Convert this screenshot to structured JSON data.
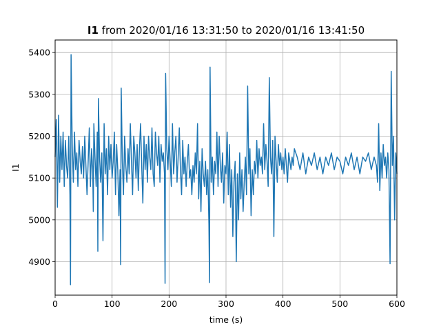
{
  "chart_data": {
    "type": "line",
    "title_bold": "I1",
    "title_rest": " from 2020/01/16 13:31:50 to 2020/01/16 13:41:50",
    "xlabel": "time (s)",
    "ylabel": "I1",
    "xlim": [
      0,
      600
    ],
    "ylim": [
      4820,
      5430
    ],
    "xticks": [
      0,
      100,
      200,
      300,
      400,
      500,
      600
    ],
    "yticks": [
      4900,
      5000,
      5100,
      5200,
      5300,
      5400
    ],
    "grid": true,
    "line_color": "#1f77b4",
    "series": [
      {
        "x": [
          0,
          2,
          4,
          6,
          8,
          10,
          12,
          14,
          16,
          18,
          20,
          22,
          24,
          26,
          27,
          28,
          30,
          32,
          34,
          36,
          38,
          40,
          42,
          44,
          46,
          48,
          50,
          52,
          54,
          56,
          58,
          60,
          62,
          64,
          66,
          67,
          68,
          70,
          72,
          74,
          75,
          76,
          78,
          80,
          82,
          84,
          86,
          88,
          90,
          92,
          94,
          96,
          98,
          100,
          102,
          104,
          106,
          108,
          110,
          112,
          114,
          115,
          116,
          118,
          120,
          122,
          124,
          126,
          128,
          130,
          132,
          134,
          136,
          138,
          140,
          142,
          144,
          146,
          148,
          150,
          152,
          154,
          156,
          158,
          160,
          162,
          164,
          166,
          168,
          170,
          172,
          174,
          176,
          178,
          180,
          182,
          184,
          186,
          188,
          190,
          192,
          193,
          194,
          196,
          198,
          200,
          202,
          204,
          206,
          208,
          210,
          212,
          214,
          216,
          218,
          220,
          222,
          224,
          226,
          228,
          230,
          232,
          234,
          236,
          238,
          240,
          242,
          244,
          246,
          248,
          250,
          252,
          254,
          256,
          258,
          260,
          262,
          264,
          266,
          268,
          270,
          271,
          272,
          274,
          276,
          278,
          280,
          282,
          284,
          286,
          288,
          290,
          292,
          294,
          296,
          298,
          300,
          302,
          304,
          306,
          308,
          310,
          312,
          314,
          316,
          318,
          320,
          322,
          324,
          326,
          328,
          330,
          332,
          334,
          336,
          338,
          340,
          342,
          344,
          346,
          348,
          350,
          352,
          354,
          356,
          358,
          360,
          362,
          364,
          366,
          368,
          370,
          372,
          374,
          376,
          378,
          380,
          382,
          384,
          386,
          388,
          390,
          392,
          394,
          396,
          398,
          400,
          402,
          404,
          406,
          408,
          410,
          412,
          414,
          416,
          418,
          420,
          425,
          430,
          435,
          440,
          445,
          450,
          455,
          460,
          465,
          470,
          475,
          480,
          485,
          490,
          495,
          500,
          505,
          510,
          515,
          520,
          525,
          530,
          535,
          540,
          545,
          550,
          555,
          560,
          564,
          566,
          568,
          570,
          572,
          574,
          576,
          578,
          580,
          582,
          584,
          586,
          588,
          590,
          592,
          594,
          596,
          598,
          600
        ],
        "y": [
          5150,
          5240,
          5030,
          5250,
          5090,
          5200,
          5120,
          5210,
          5080,
          5190,
          5130,
          5100,
          5200,
          5060,
          4845,
          5395,
          5180,
          5090,
          5210,
          5120,
          5160,
          5080,
          5190,
          5140,
          5110,
          5175,
          5100,
          5200,
          5130,
          5060,
          5140,
          5220,
          5080,
          5170,
          5120,
          5020,
          5230,
          5150,
          5080,
          5210,
          4925,
          5290,
          5150,
          5090,
          5160,
          4950,
          5230,
          5110,
          5170,
          5060,
          5200,
          5120,
          5180,
          5100,
          5140,
          5210,
          5060,
          5180,
          5120,
          5010,
          5120,
          4893,
          5315,
          5140,
          5060,
          5200,
          5130,
          5090,
          5170,
          5110,
          5230,
          5140,
          5060,
          5200,
          5160,
          5100,
          5180,
          5070,
          5170,
          5230,
          5130,
          5040,
          5200,
          5120,
          5180,
          5090,
          5200,
          5150,
          5120,
          5220,
          5110,
          5080,
          5210,
          5160,
          5130,
          5200,
          5090,
          5180,
          5140,
          5160,
          5110,
          4848,
          5350,
          5170,
          5120,
          5200,
          5140,
          5080,
          5230,
          5110,
          5160,
          5200,
          5090,
          5150,
          5220,
          5120,
          5060,
          5190,
          5110,
          5150,
          5080,
          5140,
          5180,
          5100,
          5120,
          5060,
          5130,
          5090,
          5160,
          5110,
          5230,
          5050,
          5140,
          5020,
          5170,
          5110,
          5080,
          5140,
          5060,
          5120,
          4990,
          4850,
          5365,
          5090,
          5150,
          5060,
          5140,
          5110,
          5210,
          5080,
          5200,
          5130,
          5090,
          5160,
          5040,
          5130,
          5110,
          5210,
          5060,
          5180,
          5030,
          5120,
          4960,
          5090,
          5140,
          4900,
          5110,
          5000,
          5160,
          5050,
          5120,
          5020,
          5090,
          5150,
          5060,
          5320,
          5110,
          5170,
          5010,
          5120,
          5060,
          5140,
          5110,
          5190,
          5100,
          5170,
          5130,
          5150,
          5110,
          5230,
          5120,
          5180,
          5140,
          5080,
          5340,
          5150,
          5110,
          5190,
          4960,
          5200,
          5140,
          5090,
          5180,
          5130,
          5160,
          5120,
          5150,
          5110,
          5170,
          5130,
          5090,
          5160,
          5140,
          5120,
          5150,
          5130,
          5170,
          5150,
          5120,
          5160,
          5110,
          5150,
          5130,
          5160,
          5120,
          5150,
          5110,
          5150,
          5130,
          5160,
          5120,
          5150,
          5140,
          5110,
          5150,
          5130,
          5160,
          5120,
          5150,
          5110,
          5150,
          5140,
          5160,
          5120,
          5150,
          5130,
          5090,
          5230,
          5070,
          5160,
          5100,
          5180,
          5130,
          5150,
          5100,
          5160,
          5120,
          4895,
          5355,
          5130,
          5200,
          5000,
          5160,
          5110
        ]
      }
    ]
  }
}
